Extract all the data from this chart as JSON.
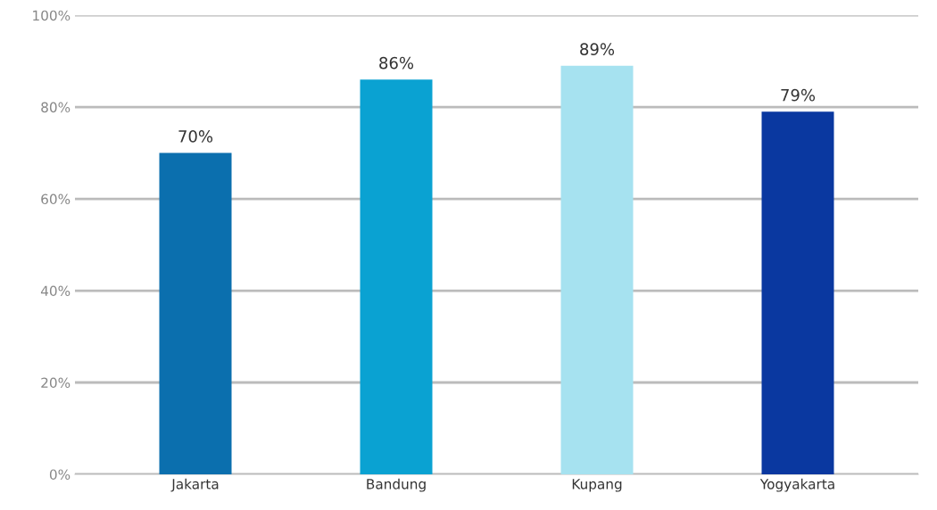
{
  "chart_data": {
    "type": "bar",
    "categories": [
      "Jakarta",
      "Bandung",
      "Kupang",
      "Yogyakarta"
    ],
    "values": [
      70,
      86,
      89,
      79
    ],
    "colors": [
      "#0b6fae",
      "#0aa2d2",
      "#a6e2f0",
      "#0a38a0"
    ],
    "value_labels": [
      "70%",
      "86%",
      "89%",
      "79%"
    ],
    "ylim": [
      0,
      100
    ],
    "yticks": [
      {
        "value": 0,
        "label": "0%"
      },
      {
        "value": 20,
        "label": "20%"
      },
      {
        "value": 40,
        "label": "40%"
      },
      {
        "value": 60,
        "label": "60%"
      },
      {
        "value": 80,
        "label": "80%"
      },
      {
        "value": 100,
        "label": "100%"
      }
    ],
    "grid": "y"
  }
}
